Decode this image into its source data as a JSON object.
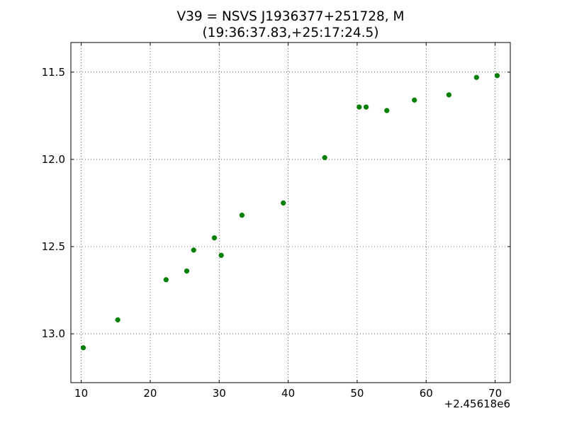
{
  "chart_data": {
    "type": "scatter",
    "title_lines": [
      "V39 = NSVS J1936377+251728, M",
      "(19:36:37.83,+25:17:24.5)"
    ],
    "xlabel": "",
    "ylabel": "",
    "x_offset_label": "+2.45618e6",
    "x_offset": 2456180,
    "xlim": [
      8.5,
      72.2
    ],
    "ylim": [
      13.28,
      11.33
    ],
    "y_inverted": true,
    "grid": true,
    "x_ticks": [
      10,
      20,
      30,
      40,
      50,
      60,
      70
    ],
    "x_tick_labels": [
      "10",
      "20",
      "30",
      "40",
      "50",
      "60",
      "70"
    ],
    "y_ticks": [
      11.5,
      12.0,
      12.5,
      13.0
    ],
    "y_tick_labels": [
      "11.5",
      "12.0",
      "12.5",
      "13.0"
    ],
    "marker_color": "#007f00",
    "series": [
      {
        "points": [
          {
            "x": 10.3,
            "y": 13.08
          },
          {
            "x": 15.3,
            "y": 12.92
          },
          {
            "x": 22.3,
            "y": 12.69
          },
          {
            "x": 25.3,
            "y": 12.64
          },
          {
            "x": 26.3,
            "y": 12.52
          },
          {
            "x": 29.3,
            "y": 12.45
          },
          {
            "x": 30.3,
            "y": 12.55
          },
          {
            "x": 33.3,
            "y": 12.32
          },
          {
            "x": 39.3,
            "y": 12.25
          },
          {
            "x": 45.3,
            "y": 11.99
          },
          {
            "x": 50.3,
            "y": 11.7
          },
          {
            "x": 51.3,
            "y": 11.7
          },
          {
            "x": 54.3,
            "y": 11.72
          },
          {
            "x": 58.3,
            "y": 11.66
          },
          {
            "x": 63.3,
            "y": 11.63
          },
          {
            "x": 67.3,
            "y": 11.53
          },
          {
            "x": 70.3,
            "y": 11.52
          }
        ]
      }
    ]
  }
}
